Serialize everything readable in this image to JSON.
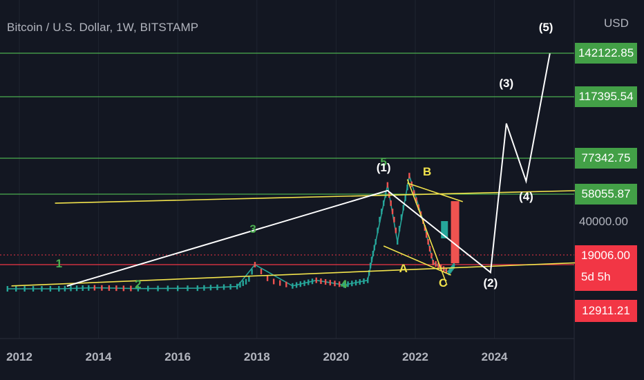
{
  "header": {
    "title": "Bitcoin / U.S. Dollar, 1W, BITSTAMP",
    "currency": "USD"
  },
  "colors": {
    "background": "#131722",
    "grid": "#1f2430",
    "green_level": "#4caf50",
    "yellow": "#f2e34c",
    "white": "#ffffff",
    "red_level": "#f23645",
    "wave_green": "#4caf50",
    "wave_yellow": "#f2e34c",
    "wave_white": "#ffffff"
  },
  "chart_data": {
    "type": "line",
    "title": "Bitcoin / U.S. Dollar, 1W, BITSTAMP",
    "x_tick_labels": [
      "2012",
      "2014",
      "2016",
      "2018",
      "2020",
      "2022",
      "2024"
    ],
    "y_axis_labels": {
      "price_40000": "40000.00"
    },
    "price_levels": [
      {
        "value": 142122.85,
        "label": "142122.85",
        "style": "green"
      },
      {
        "value": 117395.54,
        "label": "117395.54",
        "style": "green"
      },
      {
        "value": 77342.75,
        "label": "77342.75",
        "style": "green"
      },
      {
        "value": 58055.87,
        "label": "58055.87",
        "style": "green"
      },
      {
        "value": 19006.0,
        "label": "19006.00",
        "style": "red",
        "countdown": "5d 5h"
      },
      {
        "value": 12911.21,
        "label": "12911.21",
        "style": "red"
      }
    ],
    "wave_labels": [
      {
        "text": "1",
        "year": 2013.0,
        "price": 19500,
        "color": "green"
      },
      {
        "text": "2",
        "year": 2015.0,
        "price": 5000,
        "color": "green"
      },
      {
        "text": "3",
        "year": 2017.9,
        "price": 36000,
        "color": "green"
      },
      {
        "text": "4",
        "year": 2020.2,
        "price": 5500,
        "color": "green"
      },
      {
        "text": "5",
        "year": 2021.2,
        "price": 75000,
        "color": "green"
      },
      {
        "text": "(1)",
        "year": 2021.2,
        "price": 72000,
        "color": "white"
      },
      {
        "text": "A",
        "year": 2021.7,
        "price": 17500,
        "color": "yellow"
      },
      {
        "text": "B",
        "year": 2022.3,
        "price": 70000,
        "color": "yellow"
      },
      {
        "text": "C",
        "year": 2022.7,
        "price": 8500,
        "color": "yellow"
      },
      {
        "text": "(2)",
        "year": 2023.9,
        "price": 8200,
        "color": "white"
      },
      {
        "text": "(3)",
        "year": 2024.3,
        "price": 125000,
        "color": "white"
      },
      {
        "text": "(4)",
        "year": 2024.8,
        "price": 56000,
        "color": "white"
      },
      {
        "text": "(5)",
        "year": 2025.3,
        "price": 160000,
        "color": "white"
      }
    ],
    "white_wave_path": [
      {
        "year": 2013.2,
        "price": 3000
      },
      {
        "year": 2021.3,
        "price": 60000
      },
      {
        "year": 2023.9,
        "price": 16000
      },
      {
        "year": 2024.3,
        "price": 100000
      },
      {
        "year": 2024.8,
        "price": 65000
      },
      {
        "year": 2025.4,
        "price": 142000
      }
    ],
    "yellow_lines": [
      {
        "from": {
          "year": 2012.9,
          "price": 52000
        },
        "to": {
          "year": 2026.2,
          "price": 60000
        }
      },
      {
        "from": {
          "year": 2011.8,
          "price": 3200
        },
        "to": {
          "year": 2026.2,
          "price": 20000
        }
      },
      {
        "from": {
          "year": 2021.8,
          "price": 64000
        },
        "to": {
          "year": 2023.2,
          "price": 53000
        }
      },
      {
        "from": {
          "year": 2021.2,
          "price": 28000
        },
        "to": {
          "year": 2022.9,
          "price": 15000
        }
      },
      {
        "from": {
          "year": 2021.8,
          "price": 66000
        },
        "to": {
          "year": 2022.8,
          "price": 5000
        }
      }
    ],
    "dotted_levels": [
      {
        "price": 21000,
        "color": "red"
      }
    ],
    "price_series": {
      "name": "BTCUSD",
      "points": [
        {
          "year": 2011.7,
          "price": 3
        },
        {
          "year": 2013.0,
          "price": 13
        },
        {
          "year": 2013.9,
          "price": 1100
        },
        {
          "year": 2015.0,
          "price": 200
        },
        {
          "year": 2016.5,
          "price": 650
        },
        {
          "year": 2017.5,
          "price": 2500
        },
        {
          "year": 2017.95,
          "price": 19000
        },
        {
          "year": 2018.9,
          "price": 3200
        },
        {
          "year": 2019.5,
          "price": 13000
        },
        {
          "year": 2020.2,
          "price": 5000
        },
        {
          "year": 2020.8,
          "price": 13000
        },
        {
          "year": 2021.0,
          "price": 30000
        },
        {
          "year": 2021.3,
          "price": 63000
        },
        {
          "year": 2021.55,
          "price": 30000
        },
        {
          "year": 2021.85,
          "price": 68000
        },
        {
          "year": 2022.2,
          "price": 40000
        },
        {
          "year": 2022.45,
          "price": 20000
        },
        {
          "year": 2022.85,
          "price": 16000
        },
        {
          "year": 2023.0,
          "price": 19006
        }
      ]
    }
  }
}
